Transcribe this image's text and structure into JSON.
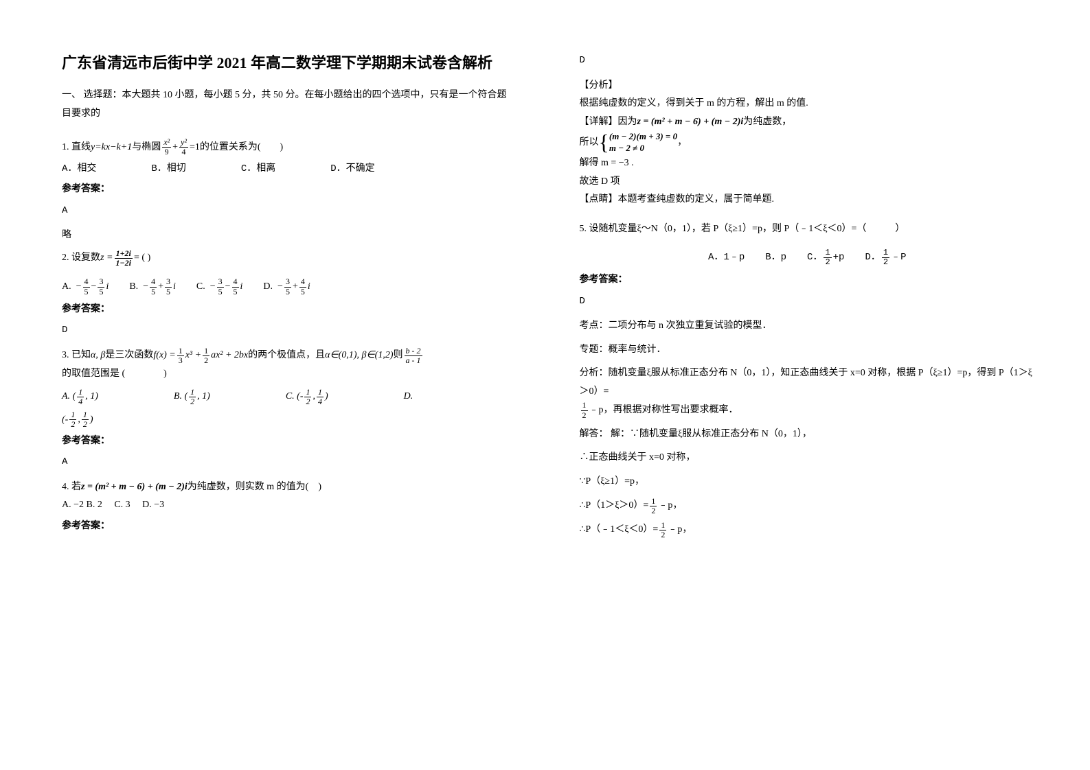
{
  "title": "广东省清远市后街中学 2021 年高二数学理下学期期末试卷含解析",
  "section1_heading": "一、 选择题：本大题共 10 小题，每小题 5 分，共 50 分。在每小题给出的四个选项中，只有是一个符合题目要求的",
  "q1": {
    "prefix": "1. 直线 ",
    "eq1": "y=kx−k+1",
    "mid": " 与椭圆",
    "suffix": " 的位置关系为(　　)",
    "ellipse_num1": "x²",
    "ellipse_num2": "y²",
    "ellipse_den1": "9",
    "ellipse_den2": "4",
    "optA": "A．相交",
    "optB": "B．相切",
    "optC": "C．相离",
    "optD": "D．不确定",
    "ans_label": "参考答案：",
    "ans": "A",
    "note": "略"
  },
  "q2": {
    "prefix": "2. 设复数 ",
    "z_num": "1+2i",
    "z_den": "1−2i",
    "suffix": " = (  )",
    "optA_pre": "A.",
    "optB_pre": "B.",
    "optC_pre": "C.",
    "optD_pre": "D.",
    "a_n1": "4",
    "a_d1": "5",
    "a_n2": "3",
    "a_d2": "5",
    "ans_label": "参考答案：",
    "ans": "D"
  },
  "q3": {
    "prefix": "3. 已知",
    "alpha_beta": "α, β",
    "mid1": " 是三次函数",
    "fx": "f(x) =",
    "f_n1": "1",
    "f_d1": "3",
    "f_x3": "x³ +",
    "f_n2": "1",
    "f_d2": "2",
    "f_ax2": "ax² + 2bx",
    "mid2": "的两个极值点，且",
    "cond": "α∈(0,1), β∈(1,2)",
    "mid3": " 则",
    "ratio_num": "b - 2",
    "ratio_den": "a - 1",
    "suffix": " 的取值范围是 (　　　　)",
    "oA": "A.",
    "oA_n": "1",
    "oA_d": "4",
    "oA_r": ", 1)",
    "oB": "B.",
    "oB_n": "1",
    "oB_d": "2",
    "oB_r": ", 1)",
    "oC": "C.",
    "oC_l": "(- ",
    "oC_n1": "1",
    "oC_d1": "2",
    "oC_c": ", ",
    "oC_n2": "1",
    "oC_d2": "4",
    "oC_r": ")",
    "oD": "D.",
    "oD_l": "(- ",
    "oD_n1": "1",
    "oD_d1": "2",
    "oD_c": ", ",
    "oD_n2": "1",
    "oD_d2": "2",
    "oD_r": ")",
    "ans_label": "参考答案：",
    "ans": "A"
  },
  "q4": {
    "prefix": "4. 若",
    "eq": "z = (m² + m − 6) + (m − 2)i",
    "suffix": " 为纯虚数，则实数 m 的值为(　)",
    "opts": "A. −2  B. 2　 C. 3　 D. −3",
    "ans_label": "参考答案："
  },
  "col2": {
    "ans4": "D",
    "analysis_label": "【分析】",
    "analysis_text": "根据纯虚数的定义，得到关于 m 的方程，解出 m 的值.",
    "detail_label": "【详解】因为",
    "detail_eq": "z = (m² + m − 6) + (m − 2)i",
    "detail_suffix": " 为纯虚数，",
    "suoyi": "所以",
    "br1": "(m − 2)(m + 3) = 0",
    "br2": "m − 2 ≠ 0",
    "comma": "，",
    "jiede": "解得 m = −3 .",
    "guxuan": "故选 D 项",
    "dian_label": "【点睛】本题考查纯虚数的定义，属于简单题.",
    "q5_text": "5. 设随机变量ξ～N（0，1），若 P（ξ≥1）=p，则 P（﹣1＜ξ＜0）=（　　　）",
    "q5_oA": "A．1﹣p",
    "q5_oB": "B．p",
    "q5_oC": "C．",
    "q5_oC_n": "1",
    "q5_oC_d": "2",
    "q5_oC_s": "+p",
    "q5_oD": "D．",
    "q5_oD_n": "1",
    "q5_oD_d": "2",
    "q5_oD_s": "﹣P",
    "ans_label": "参考答案：",
    "ans5": "D",
    "kaodian": "考点：二项分布与 n 次独立重复试验的模型．",
    "zhuanti": "专题：概率与统计．",
    "fenxi_pre": "分析：随机变量ξ服从标准正态分布 N（0，1），知正态曲线关于 x=0 对称，根据 P（ξ≥1）=p，得到 P（1＞ξ＞0）=",
    "fenxi_n": "1",
    "fenxi_d": "2",
    "fenxi_suf": "﹣p，再根据对称性写出要求概率．",
    "jieda1": "解答： 解：∵随机变量ξ服从标准正态分布 N（0，1），",
    "jieda2": "∴正态曲线关于 x=0 对称，",
    "jieda3": "∵P（ξ≥1）=p，",
    "jieda4_pre": "∴P（1＞ξ＞0）=",
    "jieda4_n": "1",
    "jieda4_d": "2",
    "jieda4_suf": "﹣p，",
    "jieda5_pre": "∴P（﹣1＜ξ＜0）=",
    "jieda5_n": "1",
    "jieda5_d": "2",
    "jieda5_suf": "﹣p，"
  }
}
